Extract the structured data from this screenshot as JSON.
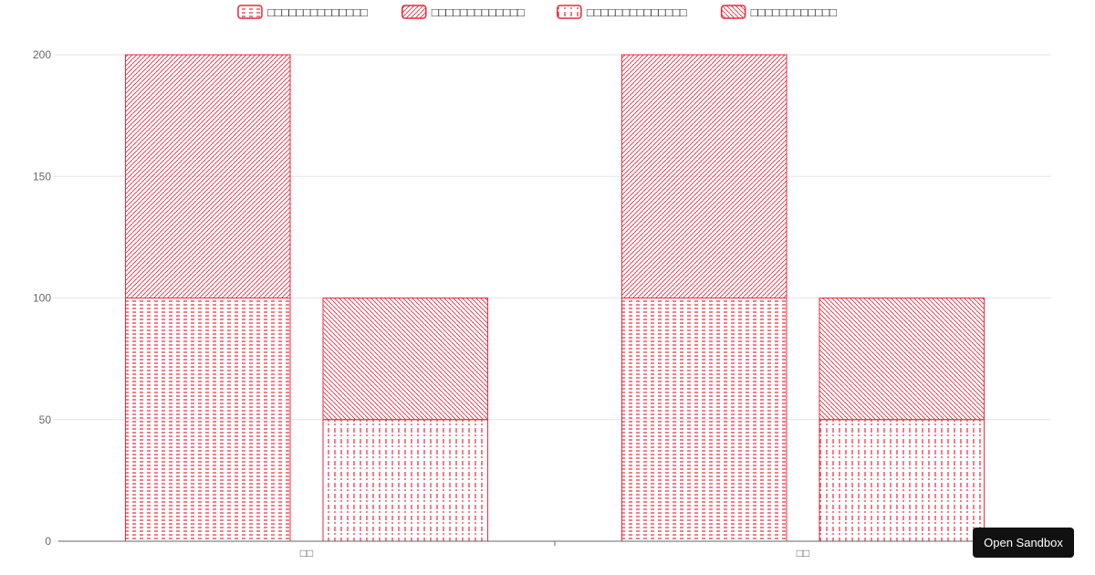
{
  "chart_data": {
    "type": "bar",
    "stacked": true,
    "categories": [
      "□□",
      "□□"
    ],
    "ylim": [
      0,
      200
    ],
    "yticks": [
      0,
      50,
      100,
      150,
      200
    ],
    "grid": true,
    "legend_position": "top",
    "series": [
      {
        "name": "□□□□□□□□□□□□□□",
        "stack": "a",
        "pattern": "dash",
        "values": [
          100,
          100
        ]
      },
      {
        "name": "□□□□□□□□□□□□□",
        "stack": "a",
        "pattern": "diagonal-right",
        "values": [
          100,
          100
        ]
      },
      {
        "name": "□□□□□□□□□□□□□□",
        "stack": "b",
        "pattern": "dot-dash",
        "values": [
          50,
          50
        ]
      },
      {
        "name": "□□□□□□□□□□□□",
        "stack": "b",
        "pattern": "diagonal-left",
        "values": [
          50,
          50
        ]
      }
    ],
    "colors": {
      "stroke": "#e8283d",
      "grid": "#e5e5e5",
      "axis": "#666666"
    }
  },
  "ui": {
    "sandbox_button": "Open Sandbox"
  }
}
